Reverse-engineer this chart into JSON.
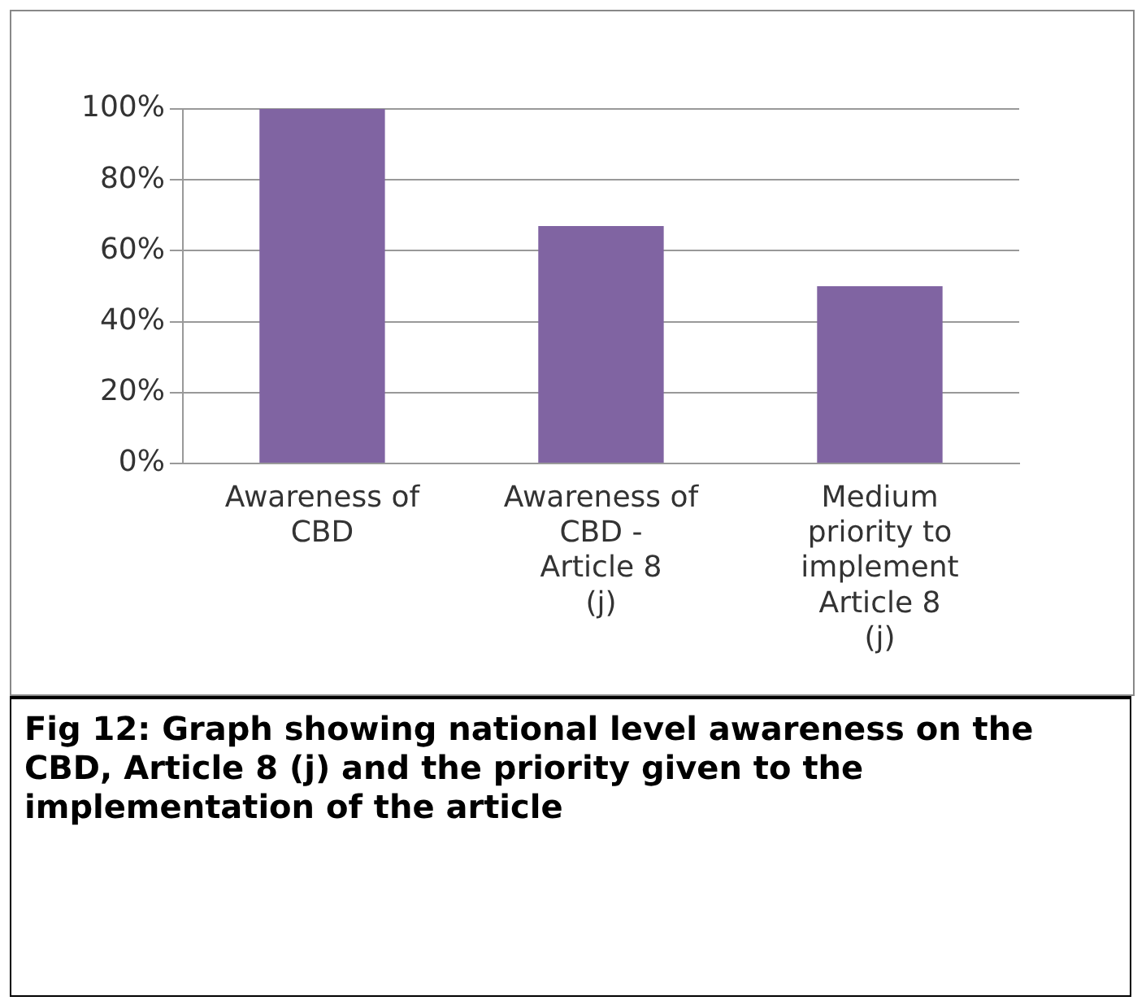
{
  "chart_data": {
    "type": "bar",
    "categories": [
      "Awareness of CBD",
      "Awareness of CBD - Article 8 (j)",
      "Medium priority to implement Article 8 (j)"
    ],
    "values": [
      100,
      67,
      50
    ],
    "color": "#8064a2",
    "ylim": [
      0,
      100
    ],
    "yticks": [
      {
        "value": 0,
        "label": "0%"
      },
      {
        "value": 20,
        "label": "20%"
      },
      {
        "value": 40,
        "label": "40%"
      },
      {
        "value": 60,
        "label": "60%"
      },
      {
        "value": 80,
        "label": "80%"
      },
      {
        "value": 100,
        "label": "100%"
      }
    ],
    "grid": "y",
    "annotations": [
      "Fig 12: Graph showing national level awareness on the CBD, Article 8 (j) and the priority given to the implementation of the article"
    ]
  }
}
